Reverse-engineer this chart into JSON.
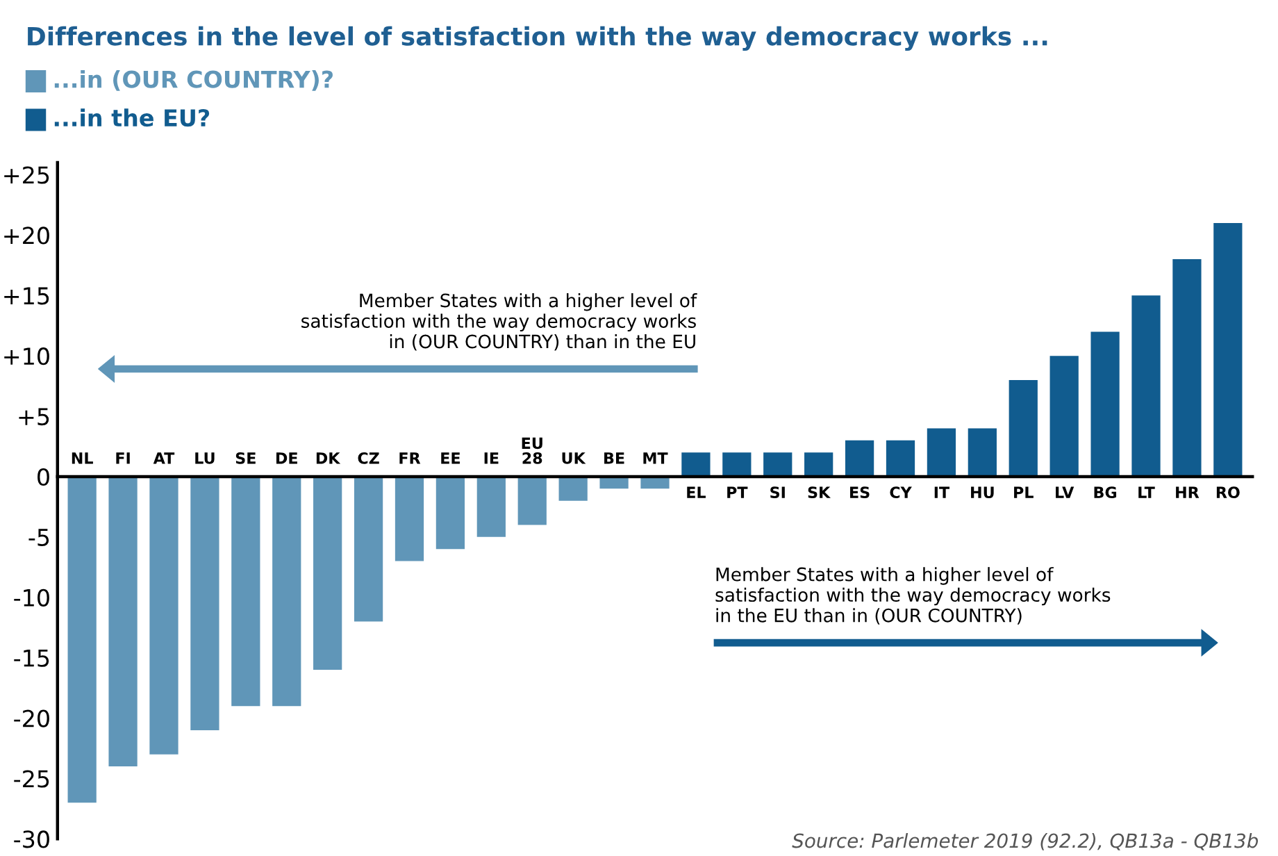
{
  "chart_data": {
    "type": "bar",
    "title": "Differences in the level of satisfaction with the way democracy works ...",
    "categories": [
      "NL",
      "FI",
      "AT",
      "LU",
      "SE",
      "DE",
      "DK",
      "CZ",
      "FR",
      "EE",
      "IE",
      "EU\n28",
      "UK",
      "BE",
      "MT",
      "EL",
      "PT",
      "SI",
      "SK",
      "ES",
      "CY",
      "IT",
      "HU",
      "PL",
      "LV",
      "BG",
      "LT",
      "HR",
      "RO"
    ],
    "series": [
      {
        "name": "...in (OUR COUNTRY)?",
        "color": "#6096b8",
        "values": [
          -27,
          -24,
          -23,
          -21,
          -19,
          -19,
          -16,
          -12,
          -7,
          -6,
          -5,
          -4,
          -2,
          -1,
          -1,
          null,
          null,
          null,
          null,
          null,
          null,
          null,
          null,
          null,
          null,
          null,
          null,
          null,
          null
        ]
      },
      {
        "name": "...in the EU?",
        "color": "#115c8f",
        "values": [
          null,
          null,
          null,
          null,
          null,
          null,
          null,
          null,
          null,
          null,
          null,
          null,
          null,
          null,
          null,
          2,
          2,
          2,
          2,
          3,
          3,
          4,
          4,
          8,
          10,
          12,
          15,
          18,
          21
        ]
      }
    ],
    "ylim": [
      -30,
      26
    ],
    "yticks": [
      {
        "value": -30,
        "label": "-30"
      },
      {
        "value": -25,
        "label": "-25"
      },
      {
        "value": -20,
        "label": "-20"
      },
      {
        "value": -15,
        "label": "-15"
      },
      {
        "value": -10,
        "label": "-10"
      },
      {
        "value": -5,
        "label": "-5"
      },
      0,
      {
        "value": 5,
        "label": "+5"
      },
      {
        "value": 10,
        "label": "+10"
      },
      {
        "value": 15,
        "label": "+15"
      },
      {
        "value": 20,
        "label": "+20"
      },
      {
        "value": 25,
        "label": "+25"
      }
    ],
    "legend": "top left",
    "annotations": [
      "Member States with a higher level of\nsatisfaction with the way democracy works\nin (OUR COUNTRY) than in the EU",
      "Member States with a higher level of\nsatisfaction with the way democracy works\nin the EU than in (OUR COUNTRY)",
      "Source: Parlemeter 2019 (92.2), QB13a - QB13b"
    ]
  }
}
